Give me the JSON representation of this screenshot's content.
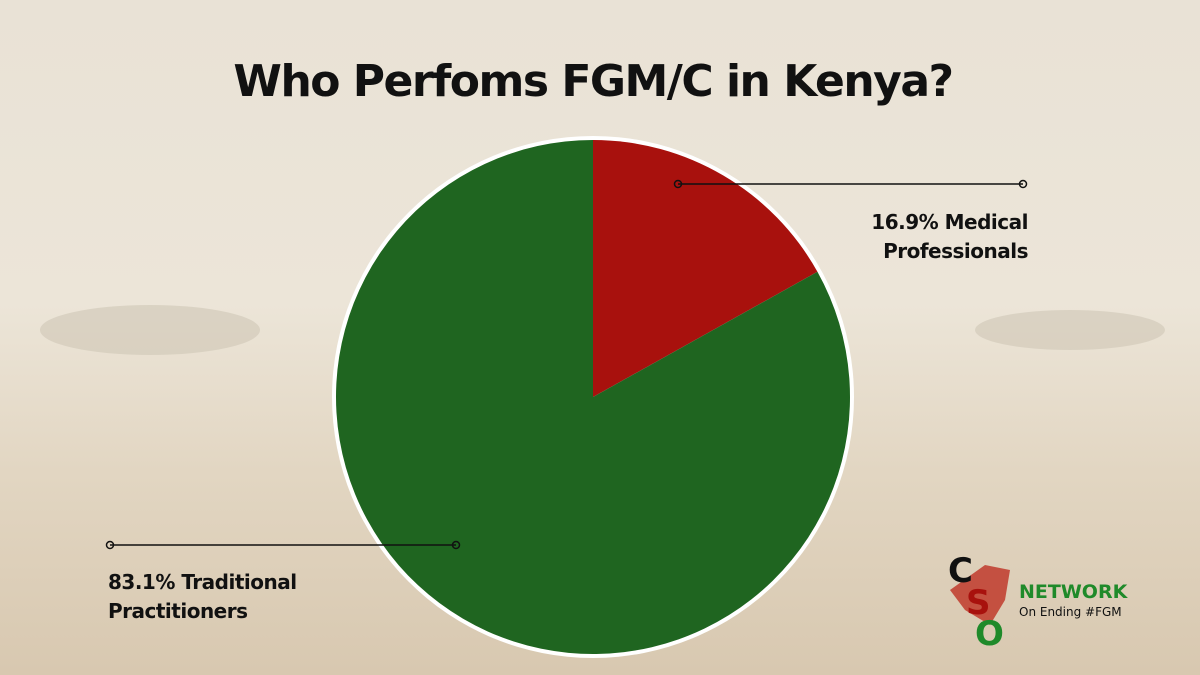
{
  "chart_data": {
    "type": "pie",
    "title": "Who Perfoms FGM/C in Kenya?",
    "categories": [
      "Medical Professionals",
      "Traditional Practitioners"
    ],
    "values": [
      16.9,
      83.1
    ],
    "value_labels": [
      "16.9%",
      "83.1%"
    ],
    "colors": [
      "#a8110d",
      "#1f6520"
    ]
  },
  "logo": {
    "letters": [
      "C",
      "S",
      "O"
    ],
    "name": "NETWORK",
    "tagline": "On Ending #FGM"
  }
}
